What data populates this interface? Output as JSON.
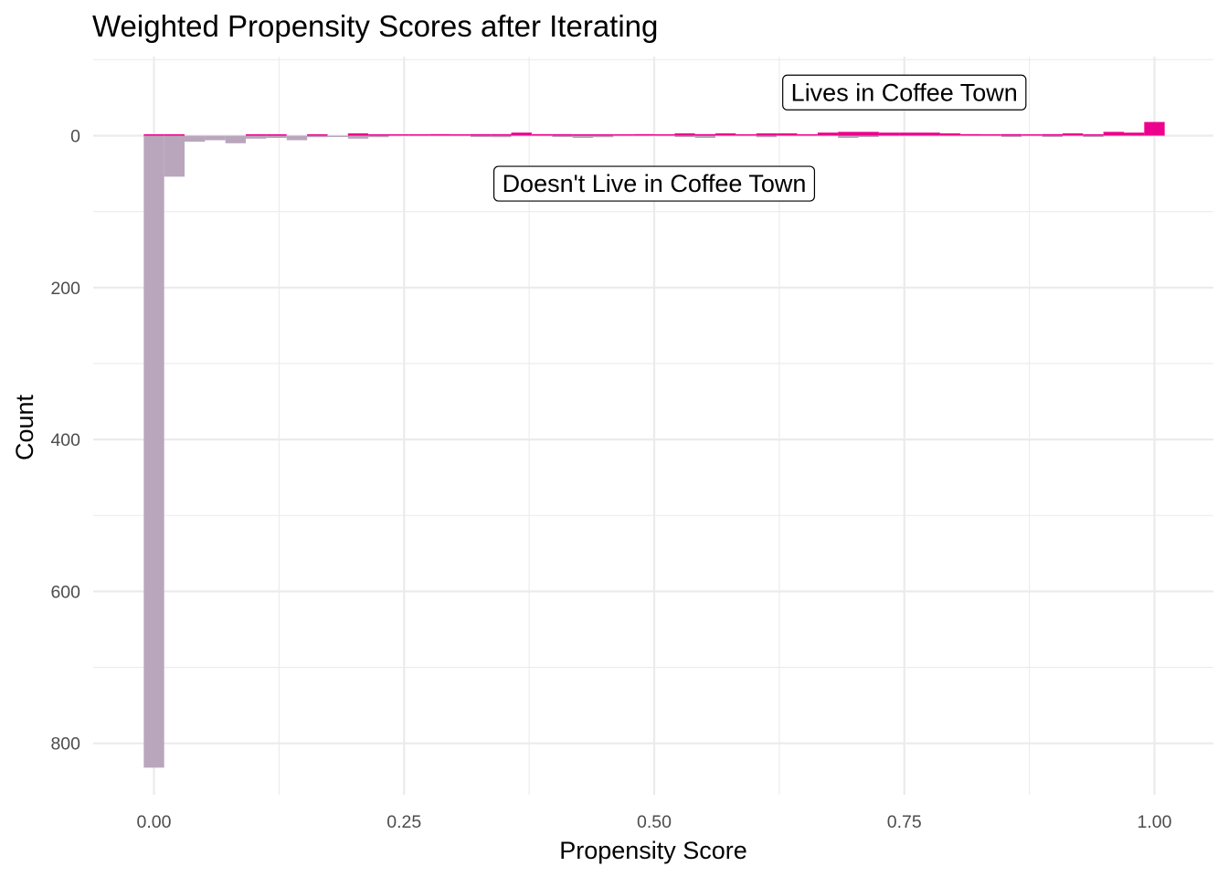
{
  "chart_data": {
    "type": "bar",
    "title": "Weighted Propensity Scores after Iterating",
    "xlabel": "Propensity Score",
    "ylabel": "Count",
    "xlim": [
      -0.06,
      1.06
    ],
    "ylim": [
      -100,
      870
    ],
    "y_reversed": true,
    "x_ticks": [
      0,
      0.25,
      0.5,
      0.75,
      1.0
    ],
    "x_tick_labels": [
      "0.00",
      "0.25",
      "0.50",
      "0.75",
      "1.00"
    ],
    "y_ticks": [
      0,
      200,
      400,
      600,
      800
    ],
    "y_tick_labels": [
      "0",
      "200",
      "400",
      "600",
      "800"
    ],
    "grid": true,
    "bin_width": 0.0204,
    "series": [
      {
        "name": "Doesn't Live in Coffee Town",
        "color": "#b9a6bc",
        "direction": "down",
        "x": [
          0.0,
          0.0204,
          0.0408,
          0.0612,
          0.0816,
          0.102,
          0.1224,
          0.1429,
          0.1633,
          0.1837,
          0.2041,
          0.2245,
          0.3265,
          0.3469,
          0.4082,
          0.4286,
          0.449,
          0.5306,
          0.551,
          0.6122,
          0.6939,
          0.7143,
          0.8571,
          0.898,
          0.9388
        ],
        "values": [
          832,
          54,
          8,
          6,
          10,
          4,
          3,
          6,
          2,
          1,
          4,
          2,
          1,
          2,
          1,
          3,
          2,
          1,
          3,
          2,
          3,
          1,
          1,
          1,
          1
        ]
      },
      {
        "name": "Lives in Coffee Town",
        "color": "#ec008c",
        "direction": "up",
        "x": [
          0.0,
          0.0204,
          0.102,
          0.1224,
          0.1633,
          0.2041,
          0.2245,
          0.2449,
          0.2653,
          0.2857,
          0.3061,
          0.3265,
          0.3469,
          0.3673,
          0.3878,
          0.4082,
          0.4286,
          0.449,
          0.4694,
          0.4898,
          0.5102,
          0.5306,
          0.551,
          0.5714,
          0.5918,
          0.6122,
          0.6327,
          0.6531,
          0.6735,
          0.6939,
          0.7143,
          0.7347,
          0.7551,
          0.7755,
          0.7959,
          0.8163,
          0.8367,
          0.8571,
          0.8776,
          0.898,
          0.9184,
          0.9388,
          0.9592,
          0.9796,
          1.0
        ],
        "values": [
          1,
          1,
          1,
          1,
          1,
          3,
          1,
          1,
          1,
          2,
          1,
          2,
          2,
          4,
          2,
          2,
          1,
          1,
          1,
          2,
          1,
          3,
          2,
          3,
          1,
          3,
          3,
          1,
          4,
          5,
          5,
          4,
          4,
          4,
          3,
          2,
          1,
          2,
          1,
          2,
          3,
          1,
          5,
          4,
          18
        ]
      }
    ],
    "annotations": [
      {
        "text": "Lives in Coffee Town",
        "x": 0.75,
        "y": -58
      },
      {
        "text": "Doesn't Live in Coffee Town",
        "x": 0.5,
        "y": 62
      }
    ]
  }
}
